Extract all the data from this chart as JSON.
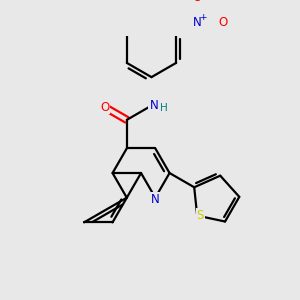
{
  "bg": "#e8e8e8",
  "C": "#000000",
  "N": "#0000cc",
  "O": "#ff0000",
  "S": "#cccc00",
  "H": "#008080",
  "lw": 1.6,
  "fs": 8.5
}
